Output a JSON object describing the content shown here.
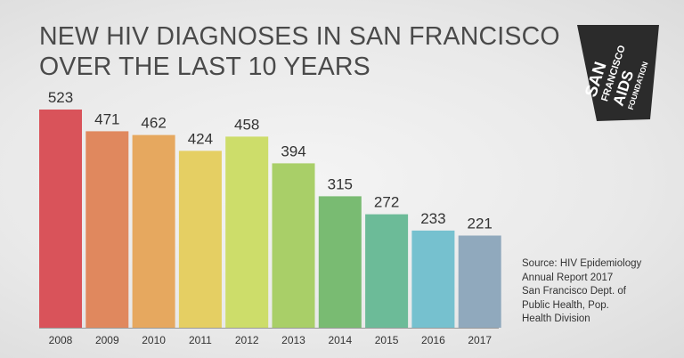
{
  "title": {
    "line1": "NEW HIV DIAGNOSES IN SAN FRANCISCO",
    "line2": "OVER THE LAST 10 YEARS"
  },
  "logo": {
    "lines": [
      "SAN",
      "FRANCISCO",
      "AIDS",
      "FOUNDATION"
    ],
    "color": "#2b2b2b"
  },
  "source": {
    "lines": [
      "Source: HIV Epidemiology",
      "Annual Report 2017",
      "San Francisco Dept. of",
      "Public Health, Pop.",
      "Health Division"
    ]
  },
  "chart_data": {
    "type": "bar",
    "title": "NEW HIV DIAGNOSES IN SAN FRANCISCO OVER THE LAST 10 YEARS",
    "categories": [
      "2008",
      "2009",
      "2010",
      "2011",
      "2012",
      "2013",
      "2014",
      "2015",
      "2016",
      "2017"
    ],
    "values": [
      523,
      471,
      462,
      424,
      458,
      394,
      315,
      272,
      233,
      221
    ],
    "colors": [
      "#d9535a",
      "#e0885e",
      "#e6a85f",
      "#e5cf63",
      "#cddd6a",
      "#a9cf68",
      "#79bb72",
      "#6cbb98",
      "#76c1cf",
      "#90a9bd"
    ],
    "ylim": [
      0,
      523
    ],
    "xlabel": "",
    "ylabel": "",
    "grid": false,
    "data_labels": true
  }
}
